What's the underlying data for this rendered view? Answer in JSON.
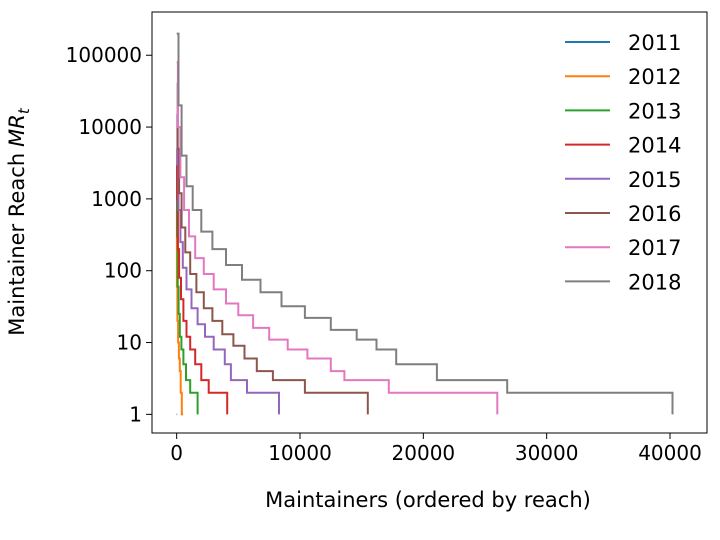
{
  "chart_data": {
    "type": "line",
    "xlabel": "Maintainers (ordered by reach)",
    "ylabel": "Maintainer Reach",
    "ylabel_math": "MR",
    "ylabel_sub": "t",
    "x_ticks": [
      "0",
      "10000",
      "20000",
      "30000",
      "40000"
    ],
    "y_ticks": [
      "1",
      "10",
      "100",
      "1000",
      "10000",
      "100000"
    ],
    "xlim": [
      -2000,
      43000
    ],
    "ylim": [
      0.55,
      400000
    ],
    "yscale": "log",
    "grid": false,
    "legend_position": "top-right",
    "series": [
      {
        "name": "2011",
        "color": "#1f77b4",
        "x": [
          0,
          0,
          40
        ],
        "y": [
          1,
          1,
          1
        ]
      },
      {
        "name": "2012",
        "color": "#ff7f0e",
        "x": [
          0,
          20,
          60,
          120,
          180,
          250,
          330,
          420,
          520
        ],
        "y": [
          700,
          60,
          20,
          10,
          6,
          4,
          2,
          1,
          1
        ]
      },
      {
        "name": "2013",
        "color": "#2ca02c",
        "x": [
          0,
          30,
          80,
          160,
          250,
          380,
          550,
          760,
          1100,
          1700
        ],
        "y": [
          3000,
          300,
          60,
          25,
          12,
          8,
          5,
          3,
          2,
          1
        ]
      },
      {
        "name": "2014",
        "color": "#d62728",
        "x": [
          0,
          40,
          100,
          200,
          350,
          550,
          800,
          1100,
          1500,
          2000,
          2600,
          4100
        ],
        "y": [
          5000,
          1000,
          200,
          80,
          40,
          20,
          12,
          8,
          5,
          3,
          2,
          1
        ]
      },
      {
        "name": "2015",
        "color": "#9467bd",
        "x": [
          0,
          60,
          150,
          300,
          500,
          800,
          1200,
          1700,
          2300,
          3000,
          3900,
          4400,
          5700,
          8300
        ],
        "y": [
          15000,
          3000,
          700,
          250,
          110,
          55,
          30,
          18,
          12,
          8,
          5,
          3,
          2,
          1
        ]
      },
      {
        "name": "2016",
        "color": "#8c564b",
        "x": [
          0,
          80,
          200,
          400,
          700,
          1100,
          1600,
          2200,
          2900,
          3700,
          4600,
          5500,
          6500,
          7800,
          10400,
          15500
        ],
        "y": [
          40000,
          5000,
          1200,
          400,
          180,
          90,
          50,
          30,
          20,
          13,
          9,
          6,
          4,
          3,
          2,
          1
        ]
      },
      {
        "name": "2017",
        "color": "#e377c2",
        "x": [
          0,
          100,
          300,
          600,
          1000,
          1500,
          2200,
          3000,
          4000,
          5000,
          6200,
          7500,
          9000,
          10600,
          12500,
          13600,
          17200,
          26000
        ],
        "y": [
          80000,
          10000,
          2000,
          700,
          300,
          150,
          90,
          55,
          35,
          24,
          16,
          11,
          8,
          6,
          4,
          3,
          2,
          1
        ]
      },
      {
        "name": "2018",
        "color": "#7f7f7f",
        "x": [
          0,
          150,
          400,
          800,
          1300,
          2000,
          2900,
          4000,
          5300,
          6800,
          8500,
          10400,
          12500,
          14600,
          16200,
          17800,
          21100,
          26800,
          40200
        ],
        "y": [
          200000,
          20000,
          4000,
          1500,
          700,
          350,
          200,
          120,
          75,
          50,
          32,
          22,
          15,
          11,
          8,
          5,
          3,
          2,
          1
        ]
      }
    ]
  }
}
